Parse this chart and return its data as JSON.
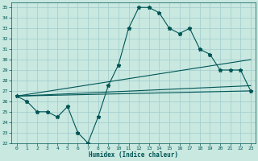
{
  "xlabel": "Humidex (Indice chaleur)",
  "xlim": [
    -0.5,
    23.5
  ],
  "ylim": [
    22,
    35.5
  ],
  "yticks": [
    22,
    23,
    24,
    25,
    26,
    27,
    28,
    29,
    30,
    31,
    32,
    33,
    34,
    35
  ],
  "xticks": [
    0,
    1,
    2,
    3,
    4,
    5,
    6,
    7,
    8,
    9,
    10,
    11,
    12,
    13,
    14,
    15,
    16,
    17,
    18,
    19,
    20,
    21,
    22,
    23
  ],
  "bg_color": "#c8e8e0",
  "grid_color": "#a0cccc",
  "line_color": "#005555",
  "curve1_x": [
    0,
    1,
    2,
    3,
    4,
    5,
    6,
    7,
    8,
    9,
    10,
    11,
    12,
    13,
    14,
    15,
    16,
    17,
    18,
    19,
    20,
    21,
    22,
    23
  ],
  "curve1_y": [
    26.5,
    26.0,
    25.0,
    25.0,
    24.5,
    25.5,
    23.0,
    22.0,
    24.5,
    27.5,
    29.5,
    33.0,
    35.0,
    35.0,
    34.5,
    33.0,
    32.5,
    33.0,
    31.0,
    30.5,
    29.0,
    29.0,
    29.0,
    27.0
  ],
  "trend1_x": [
    0,
    23
  ],
  "trend1_y": [
    26.5,
    30.0
  ],
  "trend2_x": [
    0,
    23
  ],
  "trend2_y": [
    26.5,
    27.5
  ],
  "trend3_x": [
    0,
    23
  ],
  "trend3_y": [
    26.5,
    27.0
  ]
}
